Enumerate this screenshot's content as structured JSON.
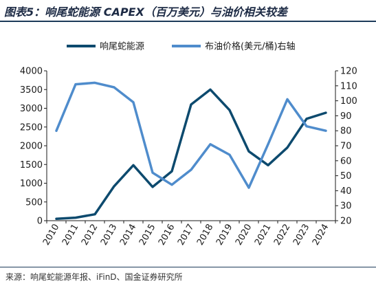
{
  "title": "图表5：响尾蛇能源 CAPEX（百万美元）与油价相关较差",
  "source": "来源：响尾蛇能源年报、iFinD、国金证券研究所",
  "chart_data": {
    "type": "line",
    "categories": [
      "2010",
      "2011",
      "2012",
      "2013",
      "2014",
      "2015",
      "2016",
      "2017",
      "2018",
      "2019",
      "2020",
      "2021",
      "2022",
      "2023",
      "2024"
    ],
    "series": [
      {
        "name": "响尾蛇能源",
        "axis": "left",
        "color": "#0d4a6e",
        "values": [
          50,
          80,
          170,
          920,
          1480,
          900,
          1320,
          3100,
          3500,
          2950,
          1850,
          1480,
          1950,
          2720,
          2880
        ]
      },
      {
        "name": "布油价格(美元/桶)右轴",
        "axis": "right",
        "color": "#4f8ccc",
        "values": [
          80,
          111,
          112,
          109,
          99,
          52,
          44,
          54,
          71,
          64,
          42,
          71,
          101,
          83,
          80
        ]
      }
    ],
    "y_left": {
      "min": 0,
      "max": 4000,
      "step": 500
    },
    "y_right": {
      "min": 20,
      "max": 120,
      "step": 10
    },
    "grid": false,
    "legend_position": "top"
  }
}
